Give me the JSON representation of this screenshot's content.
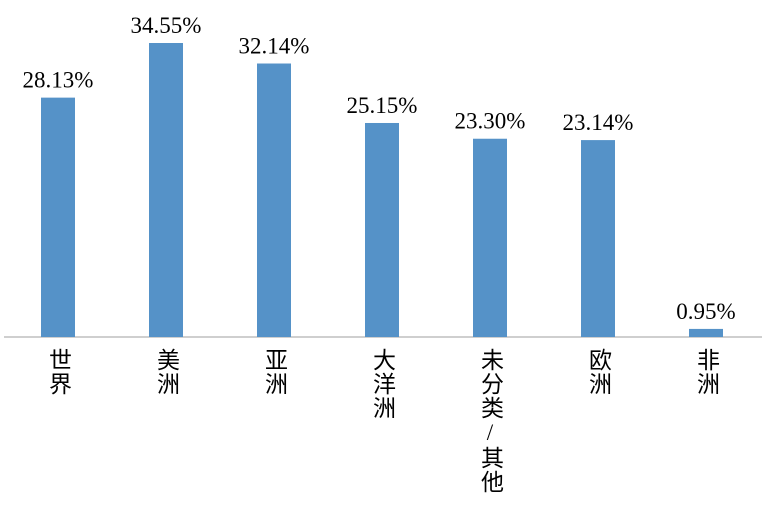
{
  "chart_data": {
    "type": "bar",
    "categories": [
      "世界",
      "美洲",
      "亚洲",
      "大洋洲",
      "未分类/其他",
      "欧洲",
      "非洲"
    ],
    "values": [
      28.13,
      34.55,
      32.14,
      25.15,
      23.3,
      23.14,
      0.95
    ],
    "value_labels": [
      "28.13%",
      "34.55%",
      "32.14%",
      "25.15%",
      "23.30%",
      "23.14%",
      "0.95%"
    ],
    "color": "#5592c8"
  }
}
